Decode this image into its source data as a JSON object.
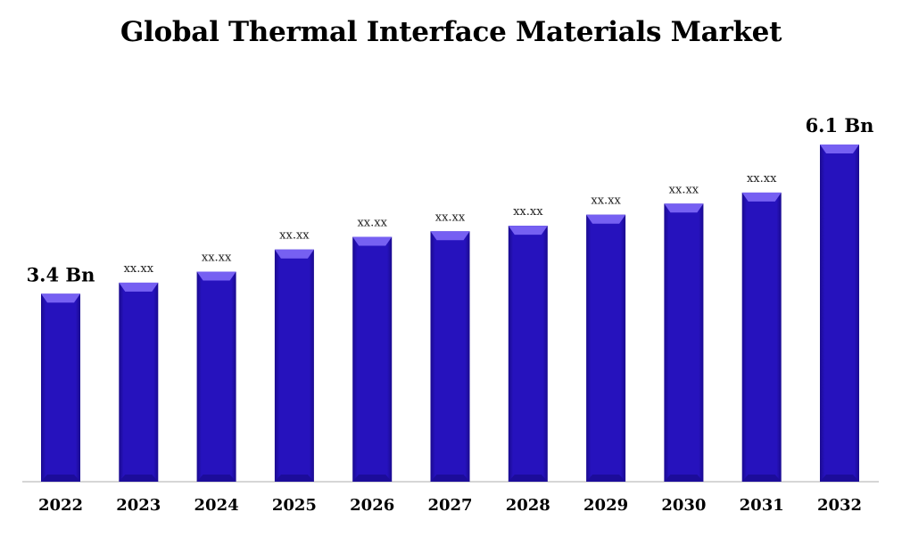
{
  "title": "Global Thermal Interface Materials Market",
  "colors": {
    "bar_body": "#2410b8",
    "bar_top": "#7660f2",
    "bar_edge": "#1a0a8f",
    "axis": "#c8c8c8"
  },
  "chart_data": {
    "type": "bar",
    "title": "Global Thermal Interface Materials Market",
    "categories": [
      "2022",
      "2023",
      "2024",
      "2025",
      "2026",
      "2027",
      "2028",
      "2029",
      "2030",
      "2031",
      "2032"
    ],
    "values": [
      3.4,
      3.6,
      3.8,
      4.2,
      4.43,
      4.53,
      4.63,
      4.83,
      5.03,
      5.23,
      6.1
    ],
    "value_labels": [
      "3.4 Bn",
      "xx.xx",
      "xx.xx",
      "xx.xx",
      "xx.xx",
      "xx.xx",
      "xx.xx",
      "xx.xx",
      "xx.xx",
      "xx.xx",
      "6.1 Bn"
    ],
    "ylim": [
      0,
      6.1
    ],
    "grid": false,
    "legend": "none"
  }
}
